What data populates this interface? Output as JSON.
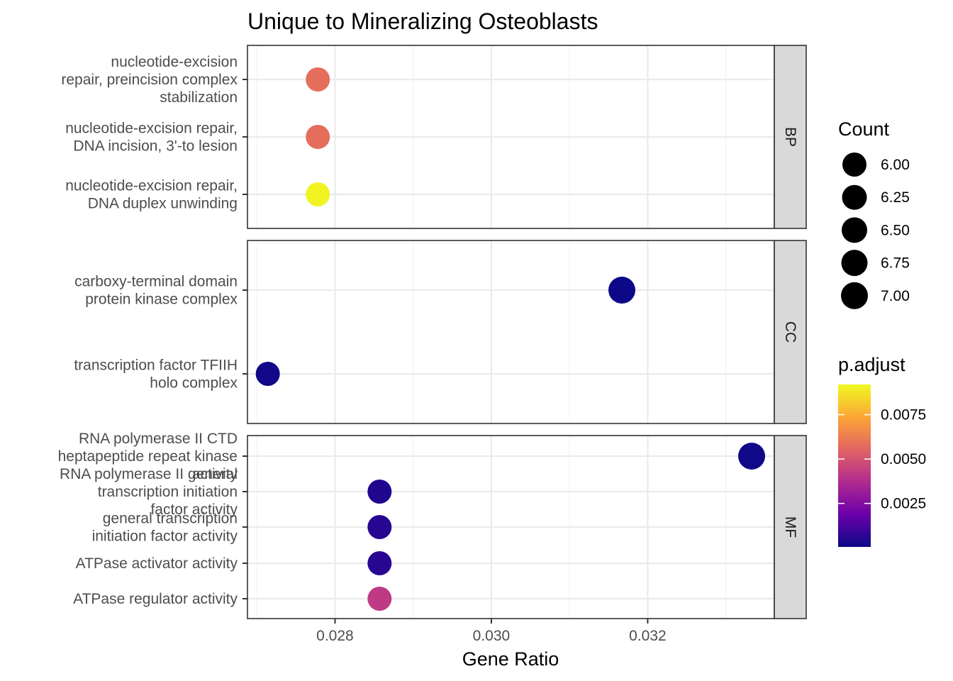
{
  "chart_data": {
    "type": "scatter",
    "title": "Unique to Mineralizing Osteoblasts",
    "xlabel": "Gene Ratio",
    "ylabel": "",
    "xlim": [
      0.02688,
      0.03362
    ],
    "x_ticks": [
      0.028,
      0.03,
      0.032
    ],
    "x_tick_labels": [
      "0.028",
      "0.030",
      "0.032"
    ],
    "grid": true,
    "facets": [
      {
        "name": "BP",
        "terms": [
          {
            "label": [
              "nucleotide-excision",
              "repair, preincision complex",
              "stabilization"
            ],
            "gene_ratio": 0.02778,
            "count": 6,
            "p_adjust": 0.0058
          },
          {
            "label": [
              "nucleotide-excision repair,",
              "DNA incision, 3'-to lesion"
            ],
            "gene_ratio": 0.02778,
            "count": 6,
            "p_adjust": 0.0058
          },
          {
            "label": [
              "nucleotide-excision repair,",
              "DNA duplex unwinding"
            ],
            "gene_ratio": 0.02778,
            "count": 6,
            "p_adjust": 0.0091
          }
        ]
      },
      {
        "name": "CC",
        "terms": [
          {
            "label": [
              "carboxy-terminal domain",
              "protein kinase complex"
            ],
            "gene_ratio": 0.03167,
            "count": 7,
            "p_adjust": 5e-05
          },
          {
            "label": [
              "transcription factor TFIIH",
              "holo complex"
            ],
            "gene_ratio": 0.02714,
            "count": 6,
            "p_adjust": 0.0001
          }
        ]
      },
      {
        "name": "MF",
        "terms": [
          {
            "label": [
              "RNA polymerase II CTD",
              "heptapeptide repeat kinase",
              "activity"
            ],
            "gene_ratio": 0.03333,
            "count": 7,
            "p_adjust": 0.0001
          },
          {
            "label": [
              "RNA polymerase II general",
              "transcription initiation",
              "factor activity"
            ],
            "gene_ratio": 0.02857,
            "count": 6,
            "p_adjust": 0.0004
          },
          {
            "label": [
              "general transcription",
              "initiation factor activity"
            ],
            "gene_ratio": 0.02857,
            "count": 6,
            "p_adjust": 0.0006
          },
          {
            "label": [
              "ATPase activator activity"
            ],
            "gene_ratio": 0.02857,
            "count": 6,
            "p_adjust": 0.0006
          },
          {
            "label": [
              "ATPase regulator activity"
            ],
            "gene_ratio": 0.02857,
            "count": 6,
            "p_adjust": 0.0042
          }
        ]
      }
    ],
    "size_legend": {
      "title": "Count",
      "breaks": [
        6.0,
        6.25,
        6.5,
        6.75,
        7.0
      ],
      "labels": [
        "6.00",
        "6.25",
        "6.50",
        "6.75",
        "7.00"
      ]
    },
    "color_legend": {
      "title": "p.adjust",
      "range": [
        5e-05,
        0.0092
      ],
      "breaks": [
        0.0025,
        0.005,
        0.0075
      ],
      "labels": [
        "0.0025",
        "0.0050",
        "0.0075"
      ],
      "palette": [
        "#0d0887",
        "#6a00a8",
        "#b12a90",
        "#e16462",
        "#fca636",
        "#f0f921"
      ]
    }
  }
}
